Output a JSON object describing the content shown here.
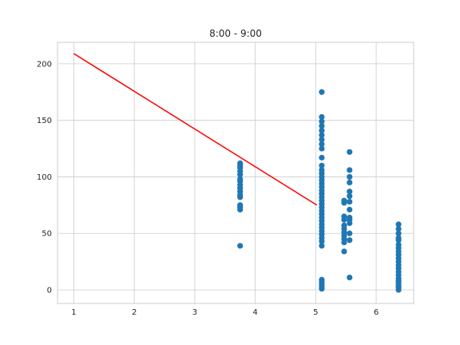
{
  "chart_data": {
    "type": "scatter",
    "title": "8:00 - 9:00",
    "xlabel": "",
    "ylabel": "",
    "xlim": [
      0.73,
      6.62
    ],
    "ylim": [
      -12,
      219
    ],
    "xticks": [
      1,
      2,
      3,
      4,
      5,
      6
    ],
    "yticks": [
      0,
      50,
      100,
      150,
      200
    ],
    "grid": true,
    "colors": {
      "points": "#1f77b4",
      "line": "#ff0000",
      "grid": "#cccccc",
      "spine": "#cccccc"
    },
    "series": [
      {
        "kind": "scatter",
        "points": [
          [
            3.75,
            39
          ],
          [
            3.75,
            71
          ],
          [
            3.75,
            73
          ],
          [
            3.75,
            75
          ],
          [
            3.75,
            82
          ],
          [
            3.75,
            84
          ],
          [
            3.75,
            87
          ],
          [
            3.75,
            90
          ],
          [
            3.75,
            93
          ],
          [
            3.75,
            96
          ],
          [
            3.75,
            98
          ],
          [
            3.75,
            102
          ],
          [
            3.75,
            105
          ],
          [
            3.75,
            108
          ],
          [
            3.75,
            110
          ],
          [
            3.75,
            112
          ],
          [
            5.1,
            1
          ],
          [
            5.1,
            3
          ],
          [
            5.1,
            5
          ],
          [
            5.1,
            7
          ],
          [
            5.1,
            9
          ],
          [
            5.1,
            39
          ],
          [
            5.1,
            43
          ],
          [
            5.1,
            46
          ],
          [
            5.1,
            49
          ],
          [
            5.1,
            52
          ],
          [
            5.1,
            55
          ],
          [
            5.1,
            58
          ],
          [
            5.1,
            61
          ],
          [
            5.1,
            64
          ],
          [
            5.1,
            67
          ],
          [
            5.1,
            70
          ],
          [
            5.1,
            73
          ],
          [
            5.1,
            76
          ],
          [
            5.1,
            79
          ],
          [
            5.1,
            82
          ],
          [
            5.1,
            85
          ],
          [
            5.1,
            88
          ],
          [
            5.1,
            91
          ],
          [
            5.1,
            94
          ],
          [
            5.1,
            97
          ],
          [
            5.1,
            100
          ],
          [
            5.1,
            103
          ],
          [
            5.1,
            106
          ],
          [
            5.1,
            110
          ],
          [
            5.1,
            117
          ],
          [
            5.1,
            125
          ],
          [
            5.1,
            129
          ],
          [
            5.1,
            133
          ],
          [
            5.1,
            137
          ],
          [
            5.1,
            141
          ],
          [
            5.1,
            145
          ],
          [
            5.1,
            149
          ],
          [
            5.1,
            153
          ],
          [
            5.1,
            175
          ],
          [
            5.47,
            34
          ],
          [
            5.47,
            42
          ],
          [
            5.47,
            45
          ],
          [
            5.47,
            48
          ],
          [
            5.47,
            51
          ],
          [
            5.47,
            54
          ],
          [
            5.47,
            57
          ],
          [
            5.47,
            62
          ],
          [
            5.47,
            65
          ],
          [
            5.47,
            77
          ],
          [
            5.47,
            79
          ],
          [
            5.56,
            11
          ],
          [
            5.56,
            44
          ],
          [
            5.56,
            50
          ],
          [
            5.56,
            59
          ],
          [
            5.56,
            62
          ],
          [
            5.56,
            64
          ],
          [
            5.56,
            71
          ],
          [
            5.56,
            78
          ],
          [
            5.56,
            83
          ],
          [
            5.56,
            87
          ],
          [
            5.56,
            95
          ],
          [
            5.56,
            100
          ],
          [
            5.56,
            106
          ],
          [
            5.56,
            122
          ],
          [
            6.37,
            0
          ],
          [
            6.37,
            2
          ],
          [
            6.37,
            4
          ],
          [
            6.37,
            6
          ],
          [
            6.37,
            8
          ],
          [
            6.37,
            10
          ],
          [
            6.37,
            13
          ],
          [
            6.37,
            16
          ],
          [
            6.37,
            19
          ],
          [
            6.37,
            22
          ],
          [
            6.37,
            25
          ],
          [
            6.37,
            28
          ],
          [
            6.37,
            31
          ],
          [
            6.37,
            34
          ],
          [
            6.37,
            37
          ],
          [
            6.37,
            40
          ],
          [
            6.37,
            44
          ],
          [
            6.37,
            46
          ],
          [
            6.37,
            50
          ],
          [
            6.37,
            54
          ],
          [
            6.37,
            58
          ]
        ]
      },
      {
        "kind": "line",
        "points": [
          [
            1,
            209
          ],
          [
            5.02,
            75
          ]
        ]
      }
    ]
  }
}
